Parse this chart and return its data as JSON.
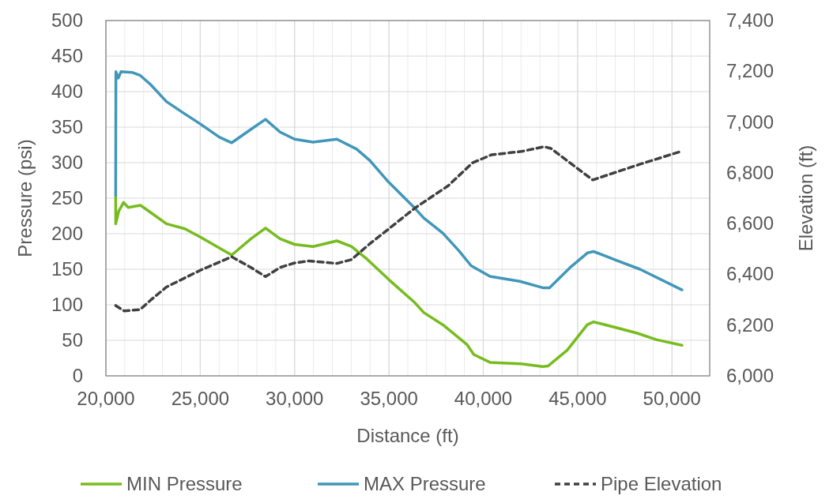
{
  "chart_data": {
    "type": "line",
    "xlabel": "Distance (ft)",
    "ylabel": "Pressure (psi)",
    "y2label": "Elevation (ft)",
    "xlim": [
      20000,
      52000
    ],
    "xticks": [
      {
        "value": 20000,
        "label": "20,000"
      },
      {
        "value": 25000,
        "label": "25,000"
      },
      {
        "value": 30000,
        "label": "30,000"
      },
      {
        "value": 35000,
        "label": "35,000"
      },
      {
        "value": 40000,
        "label": "40,000"
      },
      {
        "value": 45000,
        "label": "45,000"
      },
      {
        "value": 50000,
        "label": "50,000"
      }
    ],
    "ylim": [
      0,
      500
    ],
    "yticks": [
      0,
      50,
      100,
      150,
      200,
      250,
      300,
      350,
      400,
      450,
      500
    ],
    "y2lim": [
      6000,
      7400
    ],
    "y2ticks": [
      {
        "value": 6000,
        "label": "6,000"
      },
      {
        "value": 6200,
        "label": "6,200"
      },
      {
        "value": 6400,
        "label": "6,400"
      },
      {
        "value": 6600,
        "label": "6,600"
      },
      {
        "value": 6800,
        "label": "6,800"
      },
      {
        "value": 7000,
        "label": "7,000"
      },
      {
        "value": 7200,
        "label": "7,200"
      },
      {
        "value": 7400,
        "label": "7,400"
      }
    ],
    "grid": true,
    "legend": "bottom",
    "series": [
      {
        "name": "MIN Pressure",
        "color": "#77bc1f",
        "line_style": "solid",
        "x": [
          20518,
          20520,
          20686,
          20938,
          21176,
          21835,
          22367,
          23207,
          24188,
          25028,
          26008,
          26667,
          27689,
          28459,
          29230,
          30000,
          30980,
          32241,
          33011,
          33852,
          34972,
          36373,
          36848,
          37851,
          39140,
          39499,
          40358,
          42006,
          43152,
          43438,
          44441,
          45516,
          45845,
          47020,
          48166,
          49169,
          50530
        ],
        "values": [
          253,
          214,
          232,
          244,
          237,
          240,
          230,
          214,
          207,
          195,
          180,
          170,
          193,
          208,
          193,
          185,
          182,
          190,
          182,
          164,
          136,
          103,
          89,
          72,
          44,
          30,
          19,
          17,
          13,
          14,
          36,
          72,
          76,
          68,
          60,
          51,
          43
        ]
      },
      {
        "name": "MAX Pressure",
        "color": "#4197b9",
        "line_style": "solid",
        "x": [
          20518,
          20530,
          20658,
          20798,
          21387,
          21807,
          22367,
          23207,
          24048,
          25028,
          26008,
          26667,
          27689,
          28459,
          29230,
          30000,
          30980,
          32241,
          33291,
          33992,
          34972,
          36373,
          36848,
          37851,
          38711,
          39355,
          40358,
          41934,
          43152,
          43510,
          44585,
          45516,
          45845,
          47020,
          48309,
          50530
        ],
        "values": [
          254,
          428,
          419,
          428,
          427,
          423,
          410,
          386,
          371,
          354,
          336,
          328,
          347,
          361,
          343,
          333,
          329,
          333,
          319,
          303,
          273,
          236,
          222,
          201,
          176,
          155,
          140,
          133,
          124,
          124,
          152,
          173,
          175,
          163,
          150,
          121
        ]
      },
      {
        "name": "Pipe Elevation",
        "color": "#404040",
        "line_style": "dashed",
        "axis": "y2",
        "x": [
          20518,
          20966,
          21807,
          22367,
          23207,
          25028,
          26667,
          27689,
          28459,
          29230,
          30000,
          30770,
          32241,
          33011,
          33992,
          34972,
          36373,
          38138,
          39427,
          40430,
          42006,
          43223,
          43582,
          45802,
          48309,
          50458
        ],
        "values": [
          6277,
          6256,
          6261,
          6298,
          6350,
          6417,
          6469,
          6427,
          6391,
          6427,
          6445,
          6453,
          6443,
          6458,
          6521,
          6578,
          6661,
          6749,
          6839,
          6871,
          6884,
          6903,
          6896,
          6772,
          6834,
          6884
        ]
      }
    ]
  }
}
